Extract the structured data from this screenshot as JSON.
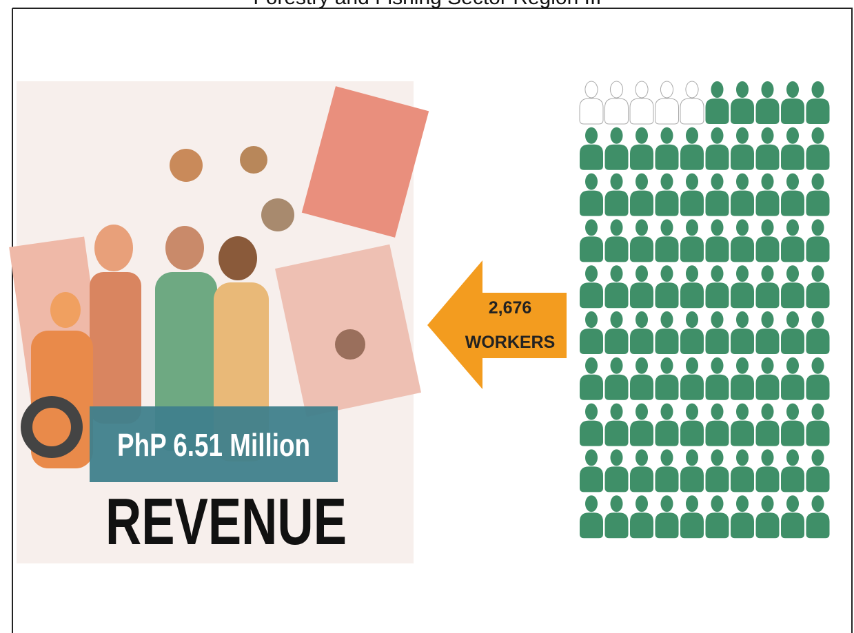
{
  "title": "Forestry and Fishing Sector Region III",
  "revenue": {
    "amount": "PhP 6.51 Million",
    "label": "REVENUE"
  },
  "workers": {
    "count": "2,676",
    "label": "WORKERS"
  },
  "pictogram": {
    "total": 100,
    "filled": 95,
    "color": "#3f8f68"
  }
}
